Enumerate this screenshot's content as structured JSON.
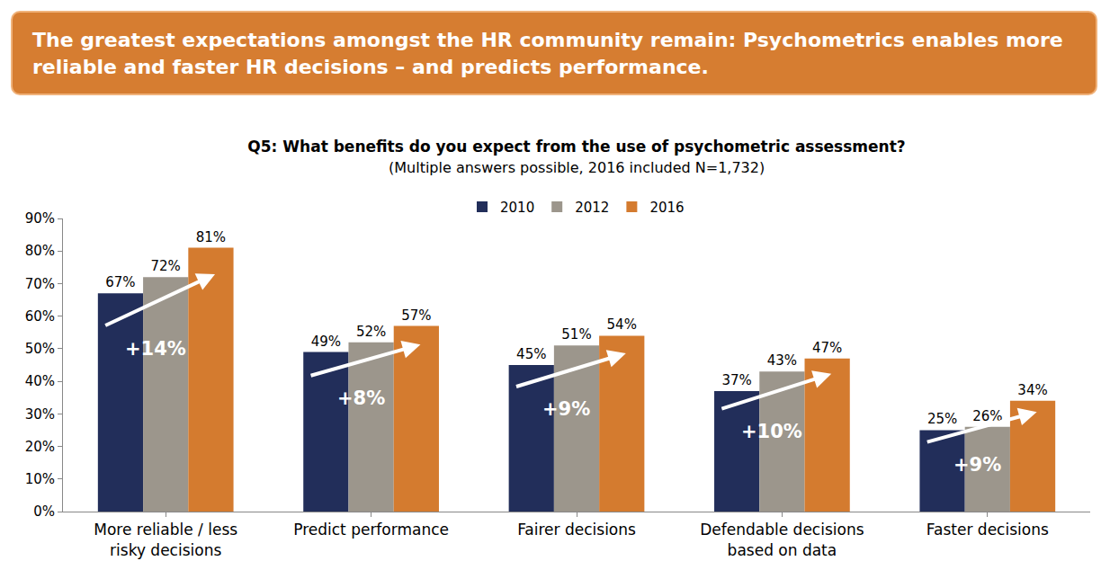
{
  "chart_data": {
    "type": "bar",
    "headline": "The greatest expectations amongst the HR community remain: Psychometrics enables more reliable and faster HR decisions – and predicts performance.",
    "title": "Q5: What benefits do you expect from the use of psychometric assessment?",
    "subtitle": "(Multiple answers possible, 2016 included N=1,732)",
    "categories": [
      "More reliable / less risky decisions",
      "Predict performance",
      "Fairer decisions",
      "Defendable decisions based on data",
      "Faster decisions"
    ],
    "series": [
      {
        "name": "2010",
        "color": "#222E5A",
        "values": [
          67,
          49,
          45,
          37,
          25
        ],
        "value_labels": [
          "67%",
          "49%",
          "45%",
          "37%",
          "25%"
        ]
      },
      {
        "name": "2012",
        "color": "#9C968C",
        "values": [
          72,
          52,
          51,
          43,
          26
        ],
        "value_labels": [
          "72%",
          "52%",
          "51%",
          "43%",
          "26%"
        ]
      },
      {
        "name": "2016",
        "color": "#D47B2F",
        "values": [
          81,
          57,
          54,
          47,
          34
        ],
        "value_labels": [
          "81%",
          "57%",
          "54%",
          "47%",
          "34%"
        ]
      }
    ],
    "annotations": [
      {
        "category": "More reliable / less risky decisions",
        "text": "+14%"
      },
      {
        "category": "Predict performance",
        "text": "+8%"
      },
      {
        "category": "Fairer decisions",
        "text": "+9%"
      },
      {
        "category": "Defendable decisions based on data",
        "text": "+10%"
      },
      {
        "category": "Faster decisions",
        "text": "+9%"
      }
    ],
    "ylim": [
      0,
      90
    ],
    "yticks": [
      {
        "value": 0,
        "label": "0%"
      },
      {
        "value": 10,
        "label": "10%"
      },
      {
        "value": 20,
        "label": "20%"
      },
      {
        "value": 30,
        "label": "30%"
      },
      {
        "value": 40,
        "label": "40%"
      },
      {
        "value": 50,
        "label": "50%"
      },
      {
        "value": 60,
        "label": "60%"
      },
      {
        "value": 70,
        "label": "70%"
      },
      {
        "value": 80,
        "label": "80%"
      },
      {
        "value": 90,
        "label": "90%"
      }
    ],
    "grid": false,
    "legend": "top",
    "data_labels": true
  }
}
